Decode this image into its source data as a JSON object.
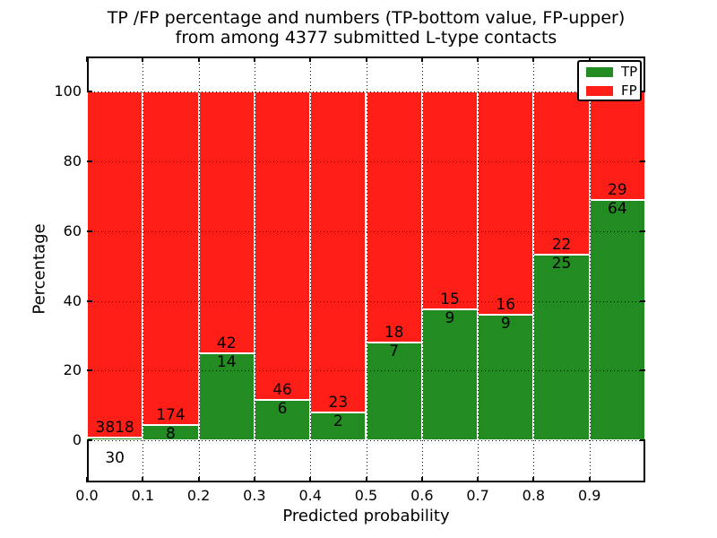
{
  "title": {
    "line1": "TP /FP percentage and numbers (TP-bottom value, FP-upper)",
    "line2": "from among 4377 submitted L-type contacts"
  },
  "chart_data": {
    "type": "bar",
    "stacked": true,
    "title": "TP /FP percentage and numbers (TP-bottom value, FP-upper) from among 4377 submitted L-type contacts",
    "xlabel": "Predicted probability",
    "ylabel": "Percentage",
    "x_ticks": [
      0.0,
      0.1,
      0.2,
      0.3,
      0.4,
      0.5,
      0.6,
      0.7,
      0.8,
      0.9
    ],
    "x_tick_labels": [
      "0.0",
      "0.1",
      "0.2",
      "0.3",
      "0.4",
      "0.5",
      "0.6",
      "0.7",
      "0.8",
      "0.9"
    ],
    "y_ticks": [
      0,
      20,
      40,
      60,
      80,
      100
    ],
    "xlim": [
      0.0,
      1.0
    ],
    "ylim": [
      -12,
      110
    ],
    "grid": true,
    "grid_style": "dotted",
    "total_contacts": 4377,
    "legend": {
      "position": "upper right",
      "entries": [
        {
          "label": "TP",
          "color": "#228B22"
        },
        {
          "label": "FP",
          "color": "#FD1F17"
        }
      ]
    },
    "bins": [
      {
        "x0": 0.0,
        "x1": 0.1,
        "tp": 30,
        "fp": 3818
      },
      {
        "x0": 0.1,
        "x1": 0.2,
        "tp": 8,
        "fp": 174
      },
      {
        "x0": 0.2,
        "x1": 0.3,
        "tp": 14,
        "fp": 42
      },
      {
        "x0": 0.3,
        "x1": 0.4,
        "tp": 6,
        "fp": 46
      },
      {
        "x0": 0.4,
        "x1": 0.5,
        "tp": 2,
        "fp": 23
      },
      {
        "x0": 0.5,
        "x1": 0.6,
        "tp": 7,
        "fp": 18
      },
      {
        "x0": 0.6,
        "x1": 0.7,
        "tp": 9,
        "fp": 15
      },
      {
        "x0": 0.7,
        "x1": 0.8,
        "tp": 9,
        "fp": 16
      },
      {
        "x0": 0.8,
        "x1": 0.9,
        "tp": 25,
        "fp": 22
      },
      {
        "x0": 0.9,
        "x1": 1.0,
        "tp": 64,
        "fp": 29
      }
    ]
  },
  "colors": {
    "tp_green": "#228B22",
    "fp_red": "#FD1F17",
    "axis": "#000000",
    "grid": "#000000",
    "bar_edge": "#FFFFFF",
    "background": "#FFFFFF",
    "text": "#000000"
  }
}
